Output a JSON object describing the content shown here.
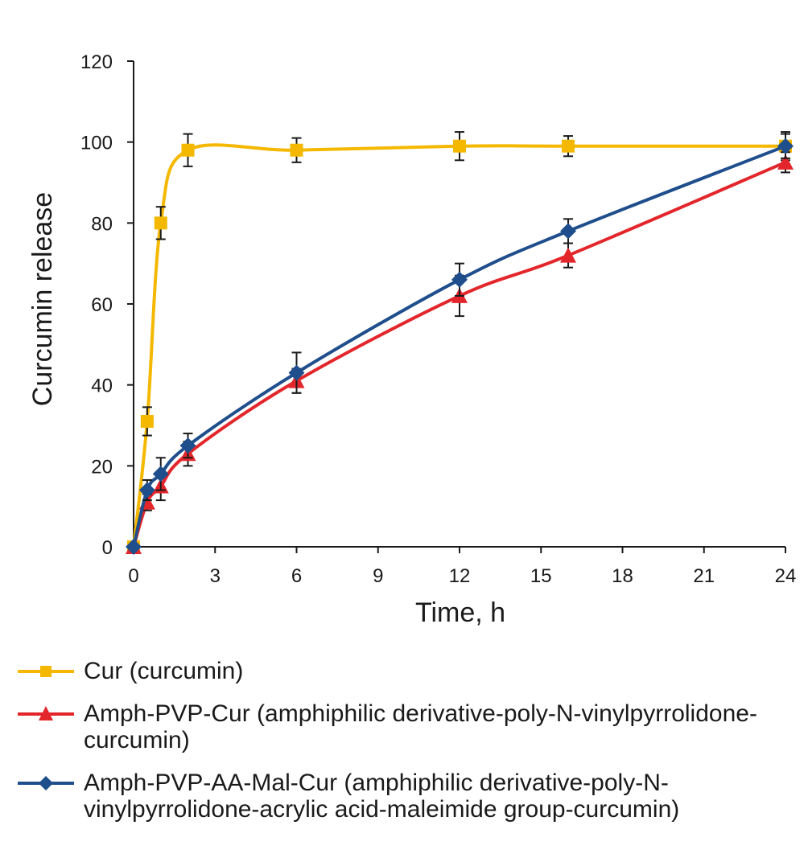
{
  "chart_data": {
    "type": "line",
    "title": "",
    "xlabel": "Time, h",
    "ylabel": "Curcumin release",
    "xlim": [
      0,
      24
    ],
    "ylim": [
      0,
      120
    ],
    "xticks": [
      0,
      3,
      6,
      9,
      12,
      15,
      18,
      21,
      24
    ],
    "yticks": [
      0,
      20,
      40,
      60,
      80,
      100,
      120
    ],
    "grid": false,
    "legend_position": "bottom",
    "series": [
      {
        "name": "Cur (curcumin)",
        "color": "#F5B800",
        "marker": "square",
        "x": [
          0,
          0.5,
          1,
          2,
          6,
          12,
          16,
          24
        ],
        "y": [
          0,
          31,
          80,
          98,
          98,
          99,
          99,
          99
        ],
        "err": [
          0,
          3.5,
          4,
          4,
          3,
          3.5,
          2.5,
          3.5
        ]
      },
      {
        "name": "Amph-PVP-Cur (amphiphilic derivative-poly-N-vinylpyrrolidone-curcumin)",
        "color": "#E3262B",
        "marker": "triangle",
        "x": [
          0,
          0.5,
          1,
          2,
          6,
          12,
          16,
          24
        ],
        "y": [
          0,
          11,
          15,
          23,
          41,
          62,
          72,
          95
        ],
        "err": [
          0,
          2,
          3.5,
          3,
          3,
          5,
          3,
          2.5
        ]
      },
      {
        "name": "Amph-PVP-AA-Mal-Cur (amphiphilic derivative-poly-N-vinylpyrrolidone-acrylic acid-maleimide group-curcumin)",
        "color": "#1F4E8C",
        "marker": "diamond",
        "x": [
          0,
          0.5,
          1,
          2,
          6,
          12,
          16,
          24
        ],
        "y": [
          0,
          14,
          18,
          25,
          43,
          66,
          78,
          99
        ],
        "err": [
          0,
          2.5,
          4,
          3,
          5,
          4,
          3,
          3
        ]
      }
    ]
  },
  "legend": {
    "items": [
      {
        "label": "Cur (curcumin)"
      },
      {
        "label": "Amph-PVP-Cur (amphiphilic derivative-poly-N-vinylpyrrolidone-curcumin)"
      },
      {
        "label": "Amph-PVP-AA-Mal-Cur (amphiphilic derivative-poly-N-vinylpyrrolidone-acrylic acid-maleimide group-curcumin)"
      }
    ]
  }
}
